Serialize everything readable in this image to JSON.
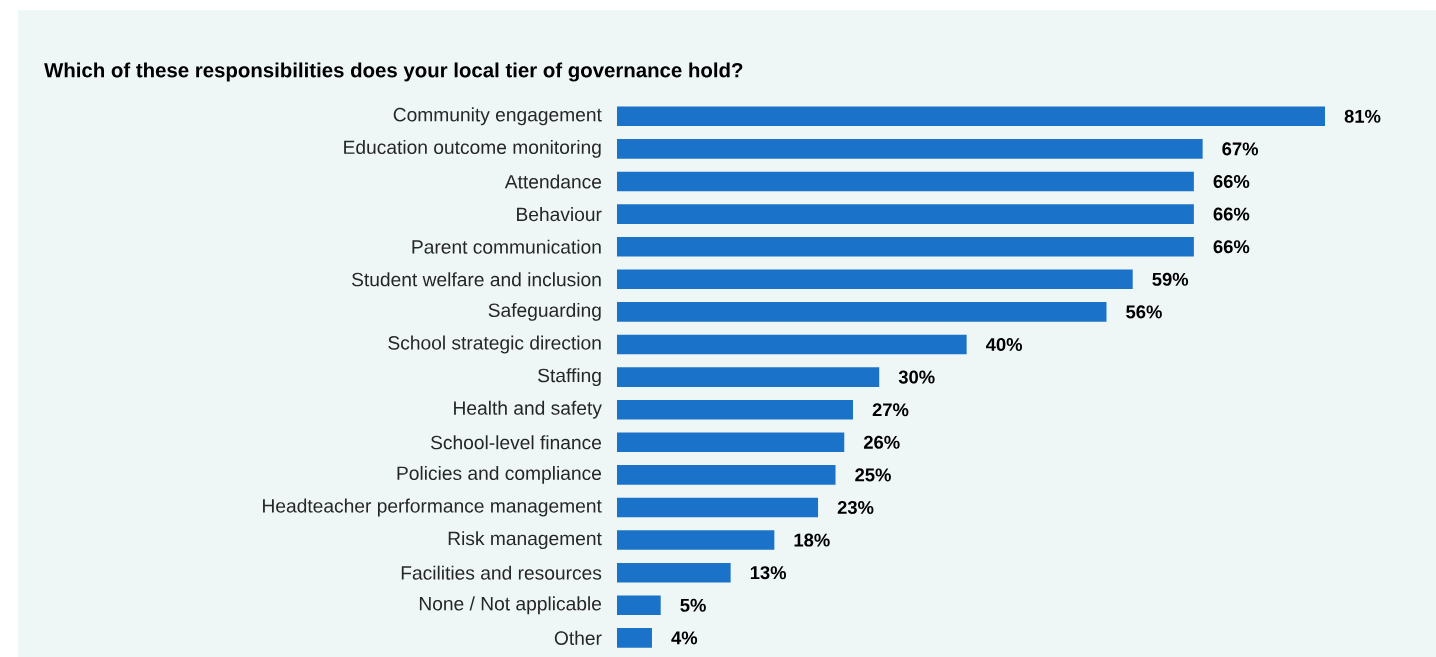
{
  "chart_data": {
    "type": "bar",
    "orientation": "horizontal",
    "title": "Which of these responsibilities does your local tier of governance hold?",
    "categories": [
      "Community engagement",
      "Education outcome monitoring",
      "Attendance",
      "Behaviour",
      "Parent communication",
      "Student welfare and inclusion",
      "Safeguarding",
      "School strategic direction",
      "Staffing",
      "Health and safety",
      "School-level finance",
      "Policies and compliance",
      "Headteacher performance management",
      "Risk management",
      "Facilities and resources",
      "None / Not applicable",
      "Other"
    ],
    "values": [
      81,
      67,
      66,
      66,
      66,
      59,
      56,
      40,
      30,
      27,
      26,
      25,
      23,
      18,
      13,
      5,
      4
    ],
    "value_labels": [
      "81%",
      "67%",
      "66%",
      "66%",
      "66%",
      "59%",
      "56%",
      "40%",
      "30%",
      "27%",
      "26%",
      "25%",
      "23%",
      "18%",
      "13%",
      "5%",
      "4%"
    ],
    "color": "#1b73c9"
  }
}
